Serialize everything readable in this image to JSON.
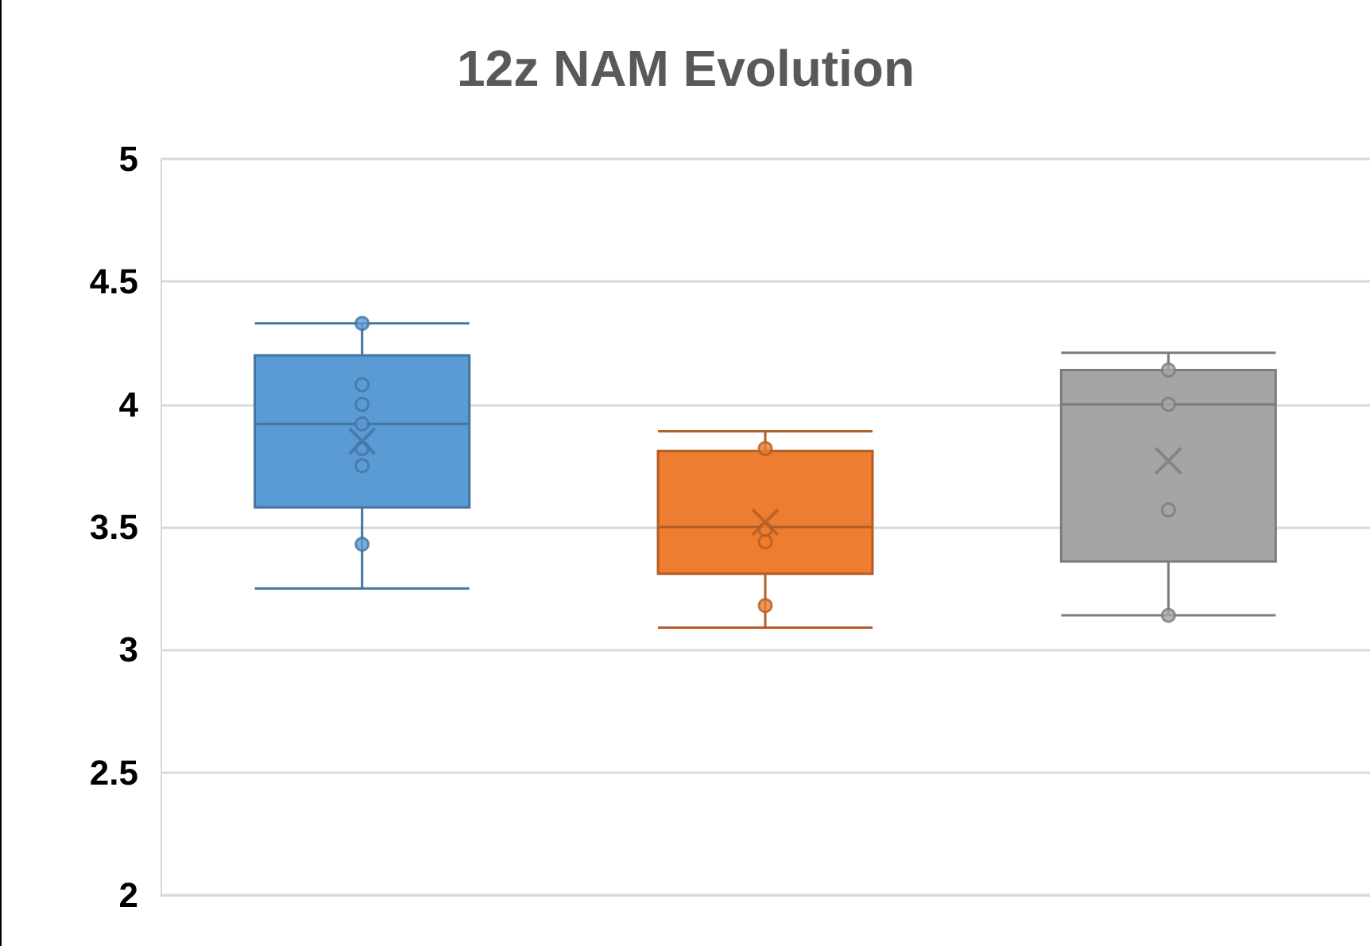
{
  "chart_data": {
    "type": "box",
    "title": "12z NAM Evolution",
    "categories": [
      null,
      null,
      null
    ],
    "colors": [
      "#5b9bd5",
      "#ed7d31",
      "#a5a5a5"
    ],
    "boxes": [
      {
        "low": 3.25,
        "q1": 3.58,
        "median": 3.92,
        "q3": 4.2,
        "high": 4.33,
        "mean": 3.85,
        "outliers": [
          4.33,
          4.08,
          4.0,
          3.92,
          3.82,
          3.75,
          3.43
        ]
      },
      {
        "low": 3.09,
        "q1": 3.31,
        "median": 3.5,
        "q3": 3.81,
        "high": 3.89,
        "mean": 3.52,
        "outliers": [
          3.82,
          3.49,
          3.44,
          3.18
        ]
      },
      {
        "low": 3.14,
        "q1": 3.36,
        "median": 4.0,
        "q3": 4.14,
        "high": 4.21,
        "mean": 3.77,
        "outliers": [
          4.14,
          4.0,
          3.57,
          3.14
        ]
      }
    ],
    "ylim": [
      2,
      5
    ],
    "yticks": [
      2,
      2.5,
      3,
      3.5,
      4,
      4.5,
      5
    ],
    "grid": "y"
  }
}
